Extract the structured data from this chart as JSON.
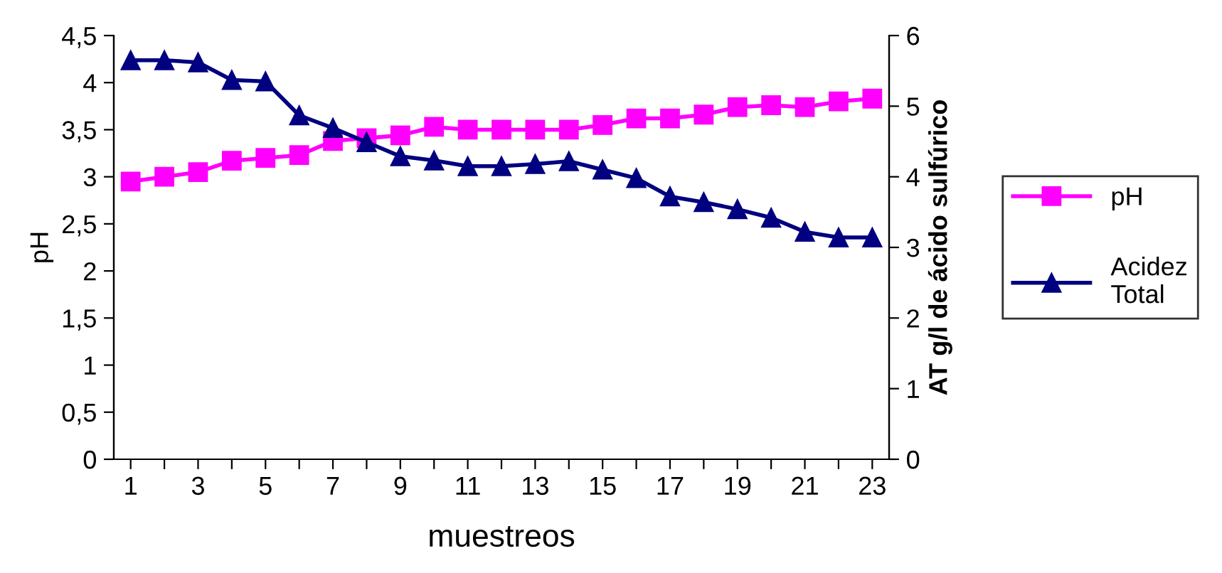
{
  "chart_data": {
    "type": "line",
    "xlabel": "muestreos",
    "ylabel": "pH",
    "y2label": "AT g/l de ácido sulfúrico",
    "categories": [
      "1",
      null,
      "3",
      null,
      "5",
      null,
      "7",
      null,
      "9",
      null,
      "11",
      null,
      "13",
      null,
      "15",
      null,
      "17",
      null,
      "19",
      null,
      "21",
      null,
      "23"
    ],
    "series": [
      {
        "name": "pH",
        "color": "#ff00ff",
        "marker": "square",
        "values": [
          2.95,
          3.0,
          3.05,
          3.17,
          3.2,
          3.23,
          3.38,
          3.41,
          3.44,
          3.53,
          3.5,
          3.5,
          3.5,
          3.5,
          3.55,
          3.62,
          3.62,
          3.66,
          3.74,
          3.76,
          3.74,
          3.8,
          3.83
        ]
      },
      {
        "name": "Acidez Total",
        "color": "#000080",
        "marker": "triangle",
        "axis": "y2",
        "values": [
          5.65,
          5.65,
          5.62,
          5.37,
          5.35,
          4.87,
          4.69,
          4.49,
          4.29,
          4.23,
          4.15,
          4.15,
          4.18,
          4.22,
          4.1,
          3.98,
          3.72,
          3.64,
          3.54,
          3.42,
          3.22,
          3.14,
          3.14
        ]
      }
    ],
    "ylim": [
      0,
      4.5
    ],
    "yticks": [
      0,
      {
        "value": 0.5,
        "label": "0,5"
      },
      1,
      {
        "value": 1.5,
        "label": "1,5"
      },
      2,
      {
        "value": 2.5,
        "label": "2,5"
      },
      3,
      {
        "value": 3.5,
        "label": "3,5"
      },
      4,
      {
        "value": 4.5,
        "label": "4,5"
      }
    ],
    "y2lim": [
      0,
      6
    ],
    "y2ticks": [
      0,
      1,
      2,
      3,
      4,
      5,
      6
    ],
    "grid": false,
    "legend": "right",
    "line_style": "solid"
  }
}
